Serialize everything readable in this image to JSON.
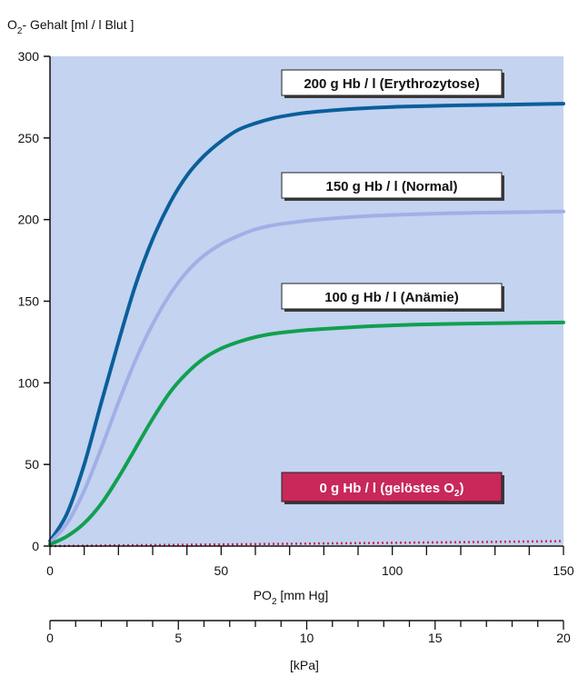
{
  "chart_data": {
    "type": "line",
    "ylabel": {
      "main": "O",
      "sub": "2",
      "rest": "- Gehalt [ml / l Blut ]"
    },
    "xlabel": {
      "main": "PO",
      "sub": "2",
      "rest": " [mm Hg]"
    },
    "xlabel_secondary": "[kPa]",
    "xlim": [
      0,
      150
    ],
    "ylim": [
      0,
      300
    ],
    "xlim_secondary": [
      0,
      20
    ],
    "x_ticks": [
      0,
      50,
      100,
      150
    ],
    "x_tick_labels": [
      "0",
      "50",
      "100",
      "150"
    ],
    "y_ticks": [
      0,
      50,
      100,
      150,
      200,
      250,
      300
    ],
    "y_tick_labels": [
      "0",
      "50",
      "100",
      "150",
      "200",
      "250",
      "300"
    ],
    "x_secondary_ticks": [
      0,
      5,
      10,
      15,
      20
    ],
    "x_secondary_tick_labels": [
      "0",
      "5",
      "10",
      "15",
      "20"
    ],
    "background_color": "#c3d3f0",
    "grid": false,
    "series": [
      {
        "name": "200 g Hb / l (Erythrozytose)",
        "color": "#0a5f9a",
        "label_box": {
          "fill": "#ffffff",
          "text_color": "#111111"
        },
        "x": [
          0,
          5,
          10,
          15,
          20,
          25,
          30,
          35,
          40,
          45,
          50,
          55,
          60,
          65,
          70,
          75,
          80,
          90,
          100,
          110,
          120,
          130,
          140,
          150
        ],
        "y": [
          3,
          20,
          50,
          88,
          125,
          160,
          188,
          210,
          227,
          239,
          248,
          255,
          259,
          262,
          264,
          265.5,
          266.5,
          268,
          269,
          269.5,
          270,
          270.3,
          270.6,
          271
        ]
      },
      {
        "name": "150 g Hb / l (Normal)",
        "color": "#a0b0e6",
        "label_box": {
          "fill": "#ffffff",
          "text_color": "#111111"
        },
        "x": [
          0,
          5,
          10,
          15,
          20,
          25,
          30,
          35,
          40,
          45,
          50,
          55,
          60,
          65,
          70,
          75,
          80,
          90,
          100,
          110,
          120,
          130,
          140,
          150
        ],
        "y": [
          2,
          14,
          34,
          60,
          88,
          114,
          136,
          154,
          168,
          178,
          185,
          190,
          194,
          196.5,
          198,
          199.3,
          200.3,
          201.8,
          202.8,
          203.5,
          204,
          204.3,
          204.6,
          205
        ]
      },
      {
        "name": "100 g Hb / l (Anämie)",
        "color": "#10a050",
        "label_box": {
          "fill": "#ffffff",
          "text_color": "#111111"
        },
        "x": [
          0,
          5,
          10,
          15,
          20,
          25,
          30,
          35,
          40,
          45,
          50,
          55,
          60,
          65,
          70,
          75,
          80,
          90,
          100,
          110,
          120,
          130,
          140,
          150
        ],
        "y": [
          1,
          6,
          14,
          26,
          42,
          60,
          78,
          94,
          106,
          115,
          121,
          125,
          128,
          130,
          131.3,
          132.3,
          133,
          134.3,
          135.2,
          135.8,
          136.2,
          136.5,
          136.8,
          137
        ]
      },
      {
        "name": "0 g Hb / l (gelöstes O",
        "name_sub": "2",
        "name_end": ")",
        "color": "#c8285a",
        "dashed": true,
        "label_box": {
          "fill": "#c8285a",
          "text_color": "#ffffff"
        },
        "x": [
          0,
          150
        ],
        "y": [
          0,
          3
        ]
      }
    ]
  }
}
